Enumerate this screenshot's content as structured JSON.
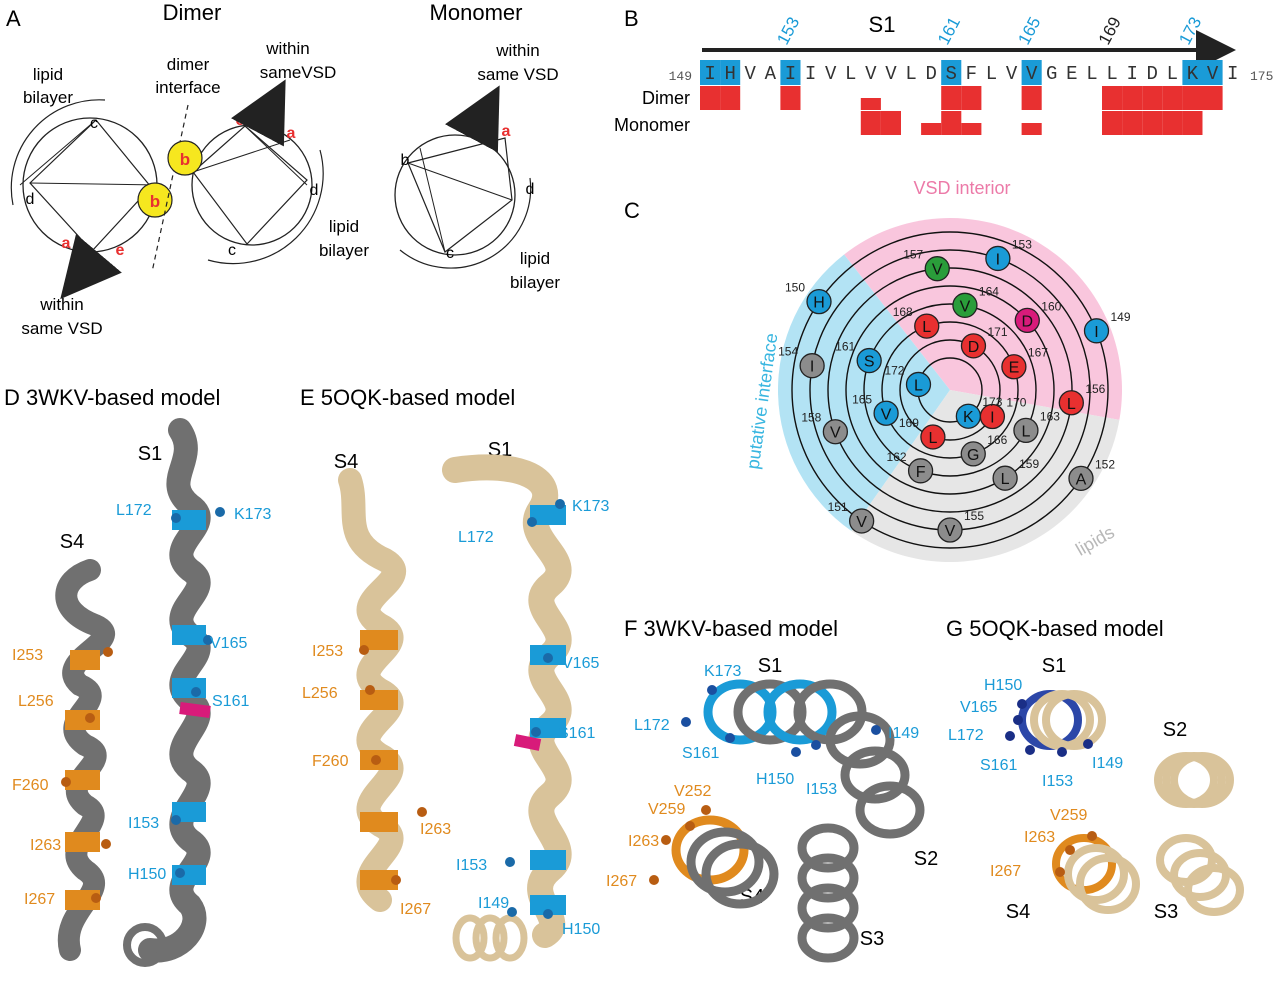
{
  "colors": {
    "blue": "#1a9bd7",
    "red": "#e83030",
    "green": "#2a9d3a",
    "gray": "#8c8c8c",
    "magenta": "#d81b7a",
    "orange": "#e08a1e",
    "tan": "#d9c39a",
    "darkgray": "#707070",
    "pink": "#f9c6dd",
    "lightblue": "#b3e3f4",
    "lightgray": "#e6e6e6",
    "yellow": "#f6e71f"
  },
  "panelA": {
    "letter": "A",
    "dimer_title": "Dimer",
    "monomer_title": "Monomer",
    "lipid_bilayer_l1": "lipid",
    "lipid_bilayer_l2": "bilayer",
    "dimer_interface_l1": "dimer",
    "dimer_interface_l2": "interface",
    "within_l1": "within",
    "within_l2_same": "same VSD",
    "within_l2_sameVSD": "sameVSD",
    "pos": {
      "a": "a",
      "b": "b",
      "c": "c",
      "d": "d",
      "e": "e"
    }
  },
  "panelB": {
    "letter": "B",
    "segment": "S1",
    "start_num": "149",
    "end_num": "175",
    "sequence": [
      "I",
      "H",
      "V",
      "A",
      "I",
      "I",
      "V",
      "L",
      "V",
      "V",
      "L",
      "D",
      "S",
      "F",
      "L",
      "V",
      "V",
      "G",
      "E",
      "L",
      "L",
      "I",
      "D",
      "L",
      "K",
      "V",
      "I"
    ],
    "highlight_idx": [
      0,
      1,
      4,
      12,
      16,
      24,
      25
    ],
    "markers": [
      {
        "label": "153",
        "idx": 4,
        "blue": true
      },
      {
        "label": "161",
        "idx": 12,
        "blue": true
      },
      {
        "label": "165",
        "idx": 16,
        "blue": true
      },
      {
        "label": "169",
        "idx": 20,
        "blue": false
      },
      {
        "label": "173",
        "idx": 24,
        "blue": true
      }
    ],
    "row_dimer": "Dimer",
    "row_monomer": "Monomer",
    "dimer_full": [
      0,
      1,
      4,
      12,
      13,
      16,
      20,
      21,
      22,
      23,
      24,
      25
    ],
    "dimer_half": [
      8
    ],
    "monomer_full": [
      8,
      9,
      12,
      20,
      21,
      22,
      23,
      24
    ],
    "monomer_half": [
      11,
      13,
      16
    ]
  },
  "panelC": {
    "letter": "C",
    "vsd_interior": "VSD interior",
    "putative_interface": "putative interface",
    "lipids": "lipids",
    "residues": [
      {
        "num": "149",
        "aa": "I",
        "color": "blue",
        "ring": 8,
        "ang": 68
      },
      {
        "num": "150",
        "aa": "H",
        "color": "blue",
        "ring": 8,
        "ang": -56
      },
      {
        "num": "151",
        "aa": "V",
        "color": "gray",
        "ring": 8,
        "ang": -146
      },
      {
        "num": "152",
        "aa": "A",
        "color": "gray",
        "ring": 8,
        "ang": 124
      },
      {
        "num": "153",
        "aa": "I",
        "color": "blue",
        "ring": 7,
        "ang": 20
      },
      {
        "num": "154",
        "aa": "I",
        "color": "gray",
        "ring": 7,
        "ang": -80
      },
      {
        "num": "155",
        "aa": "V",
        "color": "gray",
        "ring": 7,
        "ang": 180
      },
      {
        "num": "156",
        "aa": "L",
        "color": "red",
        "ring": 6,
        "ang": 96
      },
      {
        "num": "157",
        "aa": "V",
        "color": "green",
        "ring": 6,
        "ang": -6
      },
      {
        "num": "158",
        "aa": "V",
        "color": "gray",
        "ring": 6,
        "ang": -110
      },
      {
        "num": "159",
        "aa": "L",
        "color": "gray",
        "ring": 5,
        "ang": 148
      },
      {
        "num": "160",
        "aa": "D",
        "color": "magenta",
        "ring": 5,
        "ang": 48
      },
      {
        "num": "161",
        "aa": "S",
        "color": "blue",
        "ring": 4,
        "ang": -70
      },
      {
        "num": "162",
        "aa": "F",
        "color": "gray",
        "ring": 4,
        "ang": -160
      },
      {
        "num": "163",
        "aa": "L",
        "color": "gray",
        "ring": 4,
        "ang": 118
      },
      {
        "num": "164",
        "aa": "V",
        "color": "green",
        "ring": 4,
        "ang": 10
      },
      {
        "num": "165",
        "aa": "V",
        "color": "blue",
        "ring": 3,
        "ang": -110
      },
      {
        "num": "166",
        "aa": "G",
        "color": "gray",
        "ring": 3,
        "ang": 160
      },
      {
        "num": "167",
        "aa": "E",
        "color": "red",
        "ring": 3,
        "ang": 70
      },
      {
        "num": "168",
        "aa": "L",
        "color": "red",
        "ring": 3,
        "ang": -20
      },
      {
        "num": "169",
        "aa": "L",
        "color": "red",
        "ring": 2,
        "ang": -160
      },
      {
        "num": "170",
        "aa": "I",
        "color": "red",
        "ring": 2,
        "ang": 122
      },
      {
        "num": "171",
        "aa": "D",
        "color": "red",
        "ring": 2,
        "ang": 28
      },
      {
        "num": "172",
        "aa": "L",
        "color": "blue",
        "ring": 1,
        "ang": -80
      },
      {
        "num": "173",
        "aa": "K",
        "color": "blue",
        "ring": 1,
        "ang": 145
      }
    ]
  },
  "panelD": {
    "title": "D  3WKV-based model",
    "s1": "S1",
    "s4": "S4",
    "labels_blue": [
      "L172",
      "K173",
      "V165",
      "S161",
      "I153",
      "H150"
    ],
    "labels_orange": [
      "I253",
      "L256",
      "F260",
      "I263",
      "I267"
    ]
  },
  "panelE": {
    "title": "E  5OQK-based model",
    "s1": "S1",
    "s4": "S4",
    "labels_blue": [
      "K173",
      "L172",
      "V165",
      "S161",
      "I153",
      "I149",
      "H150"
    ],
    "labels_orange": [
      "I253",
      "L256",
      "F260",
      "I263",
      "I267"
    ]
  },
  "panelF": {
    "title": "F   3WKV-based model",
    "s1": "S1",
    "s2": "S2",
    "s3": "S3",
    "s4": "S4",
    "labels_blue": [
      "K173",
      "L172",
      "S161",
      "H150",
      "I153",
      "I149"
    ],
    "labels_orange": [
      "V252",
      "V259",
      "I263",
      "I267"
    ]
  },
  "panelG": {
    "title": "G   5OQK-based model",
    "s1": "S1",
    "s2": "S2",
    "s3": "S3",
    "s4": "S4",
    "labels_blue": [
      "H150",
      "V165",
      "L172",
      "S161",
      "I153",
      "I149"
    ],
    "labels_orange": [
      "V259",
      "I263",
      "I267"
    ]
  }
}
